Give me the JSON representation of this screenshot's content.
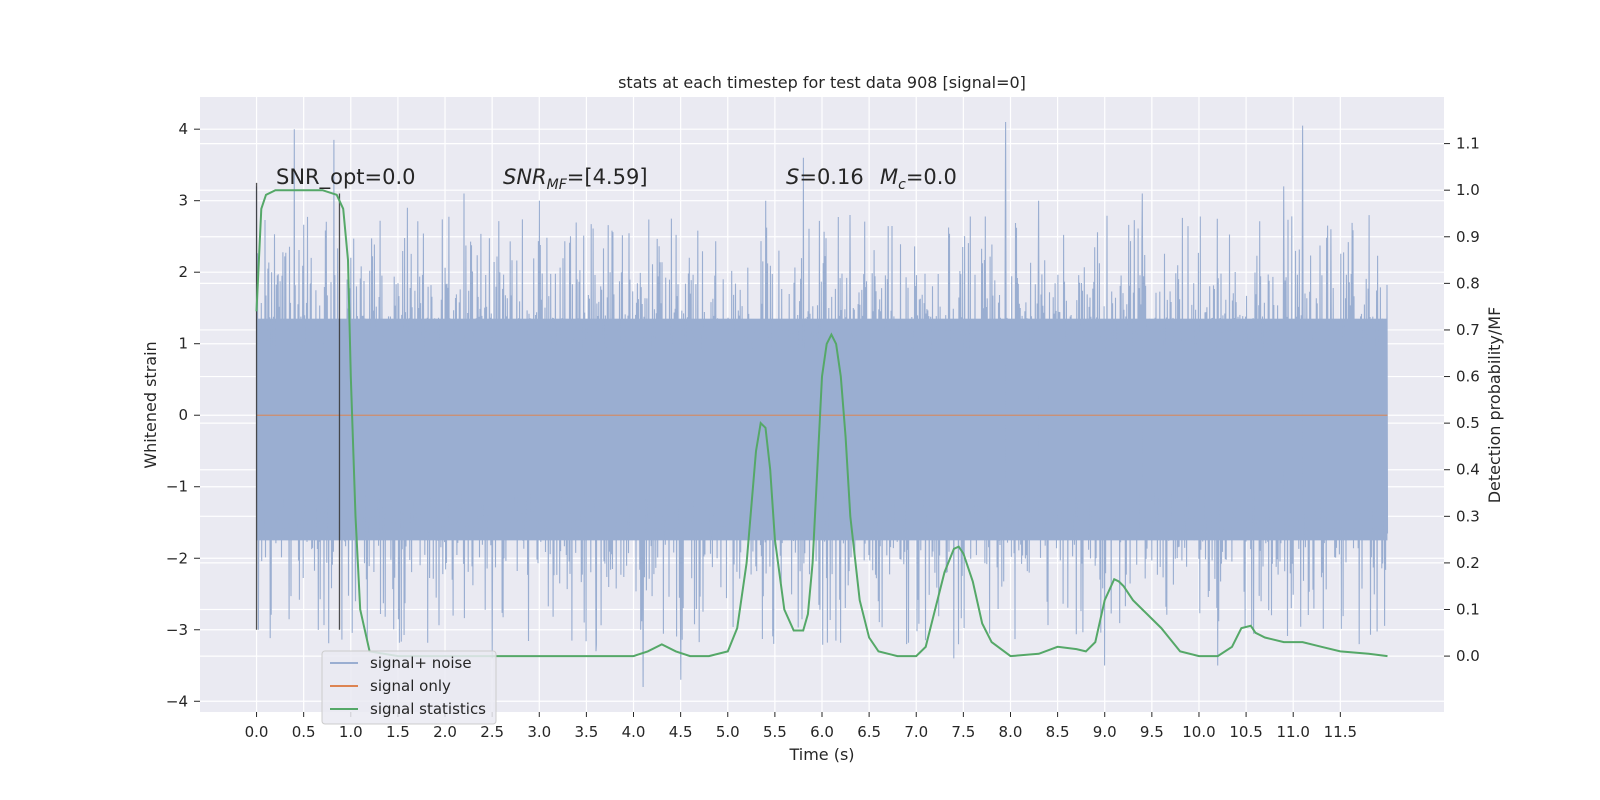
{
  "chart_data": {
    "type": "line",
    "title": "stats at each timestep for test data 908 [signal=0]",
    "xlabel": "Time (s)",
    "ylabel": "Whitened strain",
    "y2label": "Detection probability/MF",
    "xlim": [
      -0.6,
      12.6
    ],
    "ylim": [
      -4.15,
      4.45
    ],
    "y2lim": [
      -0.12,
      1.2
    ],
    "x_ticks": [
      0.0,
      0.5,
      1.0,
      1.5,
      2.0,
      2.5,
      3.0,
      3.5,
      4.0,
      4.5,
      5.0,
      5.5,
      6.0,
      6.5,
      7.0,
      7.5,
      8.0,
      8.5,
      9.0,
      9.5,
      10.0,
      10.5,
      11.0,
      11.5
    ],
    "x_tick_labels": [
      "0.0",
      "0.5",
      "1.0",
      "1.5",
      "2.0",
      "2.5",
      "3.0",
      "3.5",
      "4.0",
      "4.5",
      "5.0",
      "5.5",
      "6.0",
      "6.5",
      "7.0",
      "7.5",
      "8.0",
      "8.5",
      "9.0",
      "9.5",
      "10.0",
      "10.5",
      "11.0",
      "11.5"
    ],
    "y_ticks": [
      4,
      3,
      2,
      1,
      0,
      -1,
      -2,
      -3,
      -4
    ],
    "y_tick_labels": [
      "4",
      "3",
      "2",
      "1",
      "0",
      "−1",
      "−2",
      "−3",
      "−4"
    ],
    "y2_ticks": [
      1.1,
      1.0,
      0.9,
      0.8,
      0.7,
      0.6,
      0.5,
      0.4,
      0.3,
      0.2,
      0.1,
      0.0
    ],
    "y2_tick_labels": [
      "1.1",
      "1.0",
      "0.9",
      "0.8",
      "0.7",
      "0.6",
      "0.5",
      "0.4",
      "0.3",
      "0.2",
      "0.1",
      "0.0"
    ],
    "grid": true,
    "legend": {
      "placement": "lower-left",
      "entries": [
        "signal+ noise",
        "signal only",
        "signal statistics"
      ]
    },
    "annotations": {
      "snr_opt": "SNR_opt=0.0",
      "snr_mf_label": "SNR",
      "snr_mf_sub": "MF",
      "snr_mf_value": "=[4.59]",
      "s_label": "S",
      "s_value": "=0.16",
      "mc_label": "M",
      "mc_sub": "c",
      "mc_value": "=0.0"
    },
    "noise": {
      "x_range": [
        0.0,
        12.0
      ],
      "band_low": -1.75,
      "band_high": 1.35,
      "peaks": [
        [
          0.0,
          3.2
        ],
        [
          0.02,
          -3.0
        ],
        [
          0.4,
          4.0
        ],
        [
          0.82,
          3.85
        ],
        [
          1.05,
          -2.6
        ],
        [
          1.6,
          2.9
        ],
        [
          2.2,
          3.1
        ],
        [
          2.5,
          -3.4
        ],
        [
          3.0,
          3.0
        ],
        [
          3.6,
          -3.3
        ],
        [
          4.1,
          -3.8
        ],
        [
          4.5,
          -3.7
        ],
        [
          5.4,
          3.0
        ],
        [
          5.8,
          3.6
        ],
        [
          6.3,
          2.8
        ],
        [
          6.9,
          -3.2
        ],
        [
          7.4,
          -3.4
        ],
        [
          7.95,
          4.1
        ],
        [
          8.3,
          3.0
        ],
        [
          9.0,
          -3.5
        ],
        [
          9.4,
          3.1
        ],
        [
          10.2,
          -3.5
        ],
        [
          10.9,
          3.2
        ],
        [
          11.1,
          4.05
        ],
        [
          11.4,
          2.6
        ],
        [
          11.7,
          -3.2
        ]
      ]
    },
    "signal_only": {
      "x_range": [
        0.0,
        12.0
      ],
      "value": 0.0
    },
    "vlines": [
      {
        "x": 0.0,
        "ymin": -3.0,
        "ymax": 3.25
      },
      {
        "x": 0.88,
        "ymin": -3.0,
        "ymax": 3.1
      }
    ],
    "signal_statistics": {
      "x": [
        0.0,
        0.05,
        0.1,
        0.2,
        0.3,
        0.5,
        0.7,
        0.85,
        0.92,
        0.97,
        1.0,
        1.05,
        1.1,
        1.2,
        1.5,
        2.0,
        2.5,
        3.0,
        3.5,
        4.0,
        4.15,
        4.3,
        4.45,
        4.6,
        4.8,
        5.0,
        5.1,
        5.2,
        5.3,
        5.35,
        5.4,
        5.45,
        5.5,
        5.6,
        5.7,
        5.8,
        5.85,
        5.9,
        5.95,
        6.0,
        6.05,
        6.1,
        6.15,
        6.2,
        6.25,
        6.3,
        6.4,
        6.5,
        6.6,
        6.8,
        7.0,
        7.1,
        7.2,
        7.3,
        7.4,
        7.45,
        7.5,
        7.6,
        7.7,
        7.8,
        8.0,
        8.3,
        8.5,
        8.7,
        8.8,
        8.9,
        9.0,
        9.1,
        9.15,
        9.2,
        9.3,
        9.4,
        9.6,
        9.8,
        10.0,
        10.2,
        10.35,
        10.45,
        10.55,
        10.6,
        10.7,
        10.9,
        11.1,
        11.3,
        11.5,
        11.8,
        12.0
      ],
      "values": [
        0.74,
        0.96,
        0.99,
        1.0,
        1.0,
        1.0,
        1.0,
        0.99,
        0.96,
        0.85,
        0.6,
        0.3,
        0.1,
        0.01,
        0.0,
        0.0,
        0.0,
        0.0,
        0.0,
        0.0,
        0.01,
        0.025,
        0.01,
        0.0,
        0.0,
        0.01,
        0.06,
        0.2,
        0.44,
        0.5,
        0.49,
        0.4,
        0.25,
        0.1,
        0.055,
        0.055,
        0.09,
        0.2,
        0.4,
        0.6,
        0.67,
        0.69,
        0.67,
        0.6,
        0.47,
        0.3,
        0.12,
        0.04,
        0.01,
        0.0,
        0.0,
        0.02,
        0.1,
        0.18,
        0.23,
        0.235,
        0.22,
        0.16,
        0.07,
        0.03,
        0.0,
        0.005,
        0.02,
        0.015,
        0.01,
        0.03,
        0.12,
        0.165,
        0.16,
        0.15,
        0.12,
        0.1,
        0.06,
        0.01,
        0.0,
        0.0,
        0.02,
        0.06,
        0.065,
        0.05,
        0.04,
        0.03,
        0.03,
        0.02,
        0.01,
        0.005,
        0.0
      ]
    },
    "colors": {
      "background": "#eaeaf2",
      "grid": "#ffffff",
      "noise": "#9aaed1",
      "signal_only": "#dd8452",
      "statistics": "#55a868",
      "vline": "#333333"
    }
  }
}
